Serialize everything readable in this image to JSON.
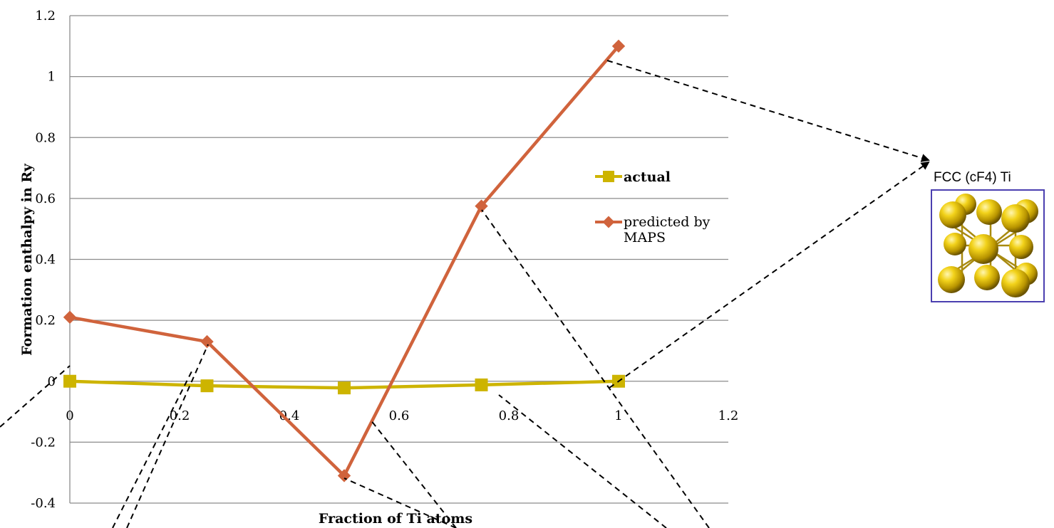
{
  "chart_data": {
    "type": "line",
    "title": "",
    "xlabel": "Fraction of Ti atoms",
    "ylabel": "Formation enthalpy in Ry",
    "xlim": [
      0,
      1.2
    ],
    "ylim": [
      -0.4,
      1.2
    ],
    "x_ticks": [
      "0",
      "0.2",
      "0.4",
      "0.6",
      "0.8",
      "1",
      "1.2"
    ],
    "y_ticks": [
      "-0.4",
      "-0.2",
      "0",
      "0.2",
      "0.4",
      "0.6",
      "0.8",
      "1",
      "1.2"
    ],
    "grid": "horizontal",
    "legend_position": "right",
    "x": [
      0,
      0.25,
      0.5,
      0.75,
      1
    ],
    "series": [
      {
        "name": "actual",
        "values": [
          0,
          -0.015,
          -0.022,
          -0.012,
          0
        ],
        "color": "#cdb400",
        "marker": "square"
      },
      {
        "name": "predicted by MAPS",
        "values": [
          0.21,
          0.13,
          -0.31,
          0.575,
          1.1
        ],
        "color": "#d0633c",
        "marker": "diamond"
      }
    ]
  },
  "annotation": {
    "structure_label": "FCC (cF4) Ti",
    "structure_icon": "fcc-crystal-structure-icon",
    "border_color": "#4b3fb0"
  },
  "colors": {
    "grid": "#8c8c8c",
    "dashed": "#000000"
  }
}
